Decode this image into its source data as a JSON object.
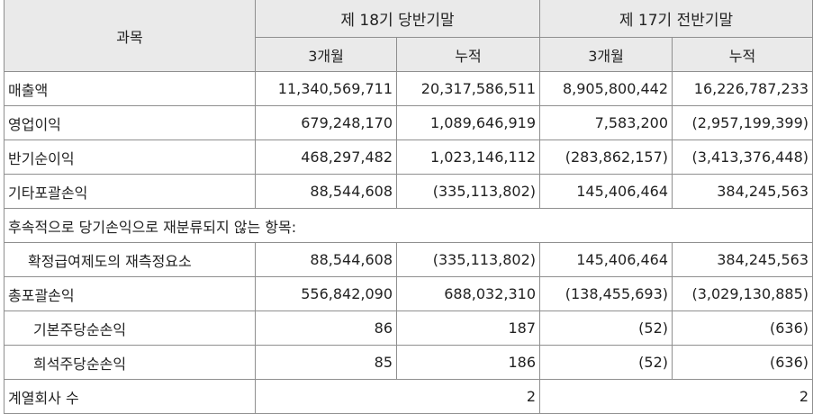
{
  "header": {
    "item": "과목",
    "period1": "제 18기 당반기말",
    "period2": "제 17기 전반기말",
    "sub": [
      "3개월",
      "누적",
      "3개월",
      "누적"
    ]
  },
  "rows": [
    {
      "label": "매출액",
      "v": [
        "11,340,569,711",
        "20,317,586,511",
        "8,905,800,442",
        "16,226,787,233"
      ]
    },
    {
      "label": "영업이익",
      "v": [
        "679,248,170",
        "1,089,646,919",
        "7,583,200",
        "(2,957,199,399)"
      ]
    },
    {
      "label": "반기순이익",
      "v": [
        "468,297,482",
        "1,023,146,112",
        "(283,862,157)",
        "(3,413,376,448)"
      ]
    },
    {
      "label": "기타포괄손익",
      "v": [
        "88,544,608",
        "(335,113,802)",
        "145,406,464",
        "384,245,563"
      ]
    },
    {
      "label": "후속적으로 당기손익으로  재분류되지 않는 항목:"
    },
    {
      "label": "확정급여제도의 재측정요소",
      "v": [
        "88,544,608",
        "(335,113,802)",
        "145,406,464",
        "384,245,563"
      ]
    },
    {
      "label": "총포괄손익",
      "v": [
        "556,842,090",
        "688,032,310",
        "(138,455,693)",
        "(3,029,130,885)"
      ]
    },
    {
      "label": "기본주당순손익",
      "v": [
        "86",
        "187",
        "(52)",
        "(636)"
      ]
    },
    {
      "label": "희석주당순손익",
      "v": [
        "85",
        "186",
        "(52)",
        "(636)"
      ]
    },
    {
      "label": "계열회사 수",
      "v": [
        "2",
        "2"
      ]
    }
  ]
}
